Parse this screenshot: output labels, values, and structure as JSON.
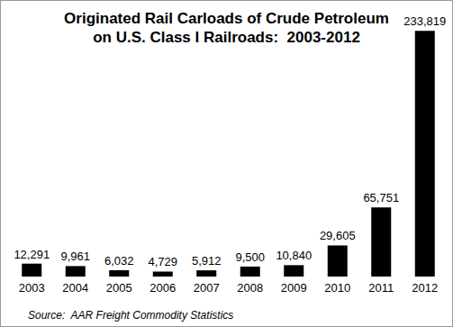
{
  "chart_data": {
    "type": "bar",
    "title": "Originated Rail Carloads of Crude Petroleum\non U.S. Class I Railroads:  2003-2012",
    "categories": [
      "2003",
      "2004",
      "2005",
      "2006",
      "2007",
      "2008",
      "2009",
      "2010",
      "2011",
      "2012"
    ],
    "values": [
      12291,
      9961,
      6032,
      4729,
      5912,
      9500,
      10840,
      29605,
      65751,
      233819
    ],
    "value_labels": [
      "12,291",
      "9,961",
      "6,032",
      "4,729",
      "5,912",
      "9,500",
      "10,840",
      "29,605",
      "65,751",
      "233,819"
    ],
    "color": "#000000",
    "ylim": [
      0,
      240000
    ],
    "data_labels": true,
    "tick_labels": "x",
    "grid": false,
    "source": "Source:  AAR Freight Commodity Statistics"
  }
}
